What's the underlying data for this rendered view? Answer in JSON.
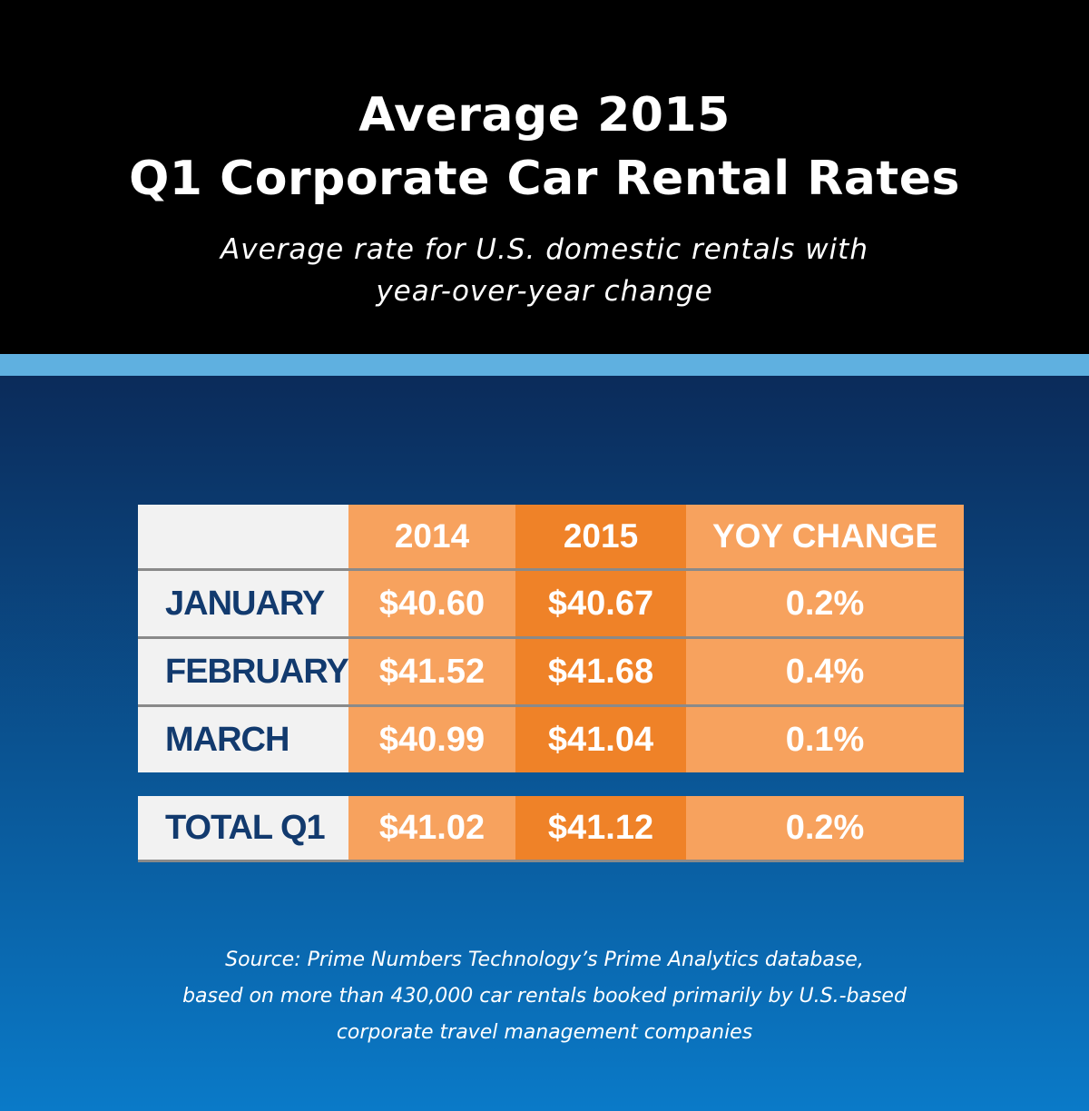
{
  "header": {
    "title_line1": "Average 2015",
    "title_line2": "Q1 Corporate Car Rental Rates",
    "subtitle_line1": "Average rate for U.S. domestic rentals with",
    "subtitle_line2": "year-over-year change"
  },
  "colors": {
    "header_bg": "#000000",
    "accent_band": "#5fb0e0",
    "body_gradient_top": "#0b2b5a",
    "body_gradient_bottom": "#0a7ac8",
    "col_2014": "#f7a25e",
    "col_2015": "#ef8228",
    "col_yoy": "#f7a25e",
    "month_text": "#123a6e",
    "month_bg": "#f2f2f2"
  },
  "table": {
    "columns": [
      "",
      "2014",
      "2015",
      "YOY CHANGE"
    ],
    "rows": [
      {
        "month": "JANUARY",
        "y2014": "$40.60",
        "y2015": "$40.67",
        "yoy": "0.2%"
      },
      {
        "month": "FEBRUARY",
        "y2014": "$41.52",
        "y2015": "$41.68",
        "yoy": "0.4%"
      },
      {
        "month": "MARCH",
        "y2014": "$40.99",
        "y2015": "$41.04",
        "yoy": "0.1%"
      }
    ],
    "total": {
      "month": "TOTAL Q1",
      "y2014": "$41.02",
      "y2015": "$41.12",
      "yoy": "0.2%"
    }
  },
  "source": {
    "line1": "Source: Prime Numbers Technology’s Prime Analytics database,",
    "line2": "based on more than 430,000 car rentals booked primarily by U.S.-based",
    "line3": "corporate travel management companies"
  },
  "chart_data": {
    "type": "table",
    "title": "Average 2015 Q1 Corporate Car Rental Rates",
    "subtitle": "Average rate for U.S. domestic rentals with year-over-year change",
    "columns": [
      "",
      "2014",
      "2015",
      "YOY CHANGE"
    ],
    "categories": [
      "JANUARY",
      "FEBRUARY",
      "MARCH",
      "TOTAL Q1"
    ],
    "series": [
      {
        "name": "2014",
        "values": [
          40.6,
          41.52,
          40.99,
          41.02
        ]
      },
      {
        "name": "2015",
        "values": [
          40.67,
          41.68,
          41.04,
          41.12
        ]
      },
      {
        "name": "YOY CHANGE",
        "values": [
          0.2,
          0.4,
          0.1,
          0.2
        ]
      }
    ]
  }
}
